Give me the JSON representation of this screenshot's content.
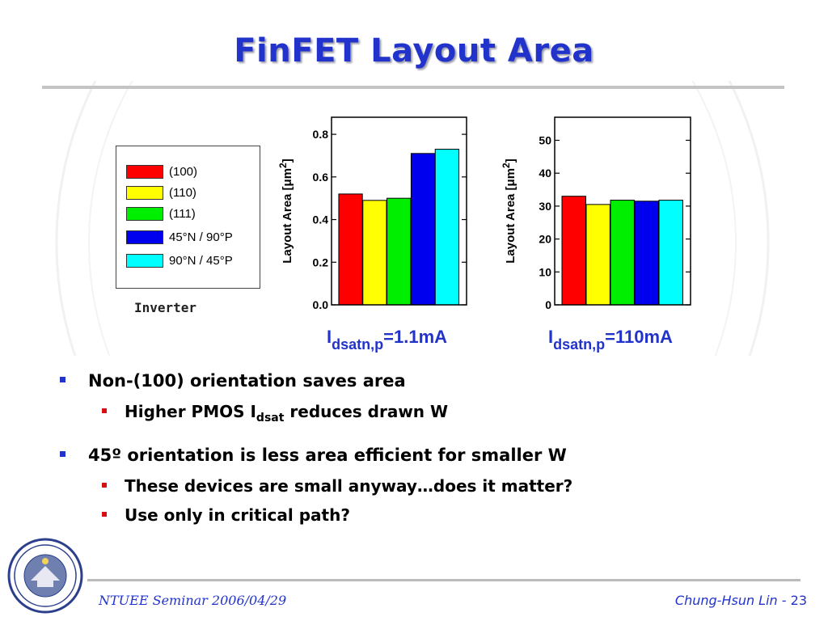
{
  "slide": {
    "title": "FinFET Layout Area",
    "footer_left": "NTUEE Seminar 2006/04/29",
    "footer_author": "Chung-Hsun Lin -",
    "footer_page": "23"
  },
  "legend": {
    "items": [
      {
        "label": "(100)",
        "color": "#ff0000"
      },
      {
        "label": "(110)",
        "color": "#ffff00"
      },
      {
        "label": "(111)",
        "color": "#00ee00"
      },
      {
        "label": "45°N / 90°P",
        "color": "#0000ee"
      },
      {
        "label": "90°N / 45°P",
        "color": "#00ffff"
      }
    ],
    "caption": "Inverter"
  },
  "chart_data": [
    {
      "type": "bar",
      "categories": [
        "(100)",
        "(110)",
        "(111)",
        "45°N / 90°P",
        "90°N / 45°P"
      ],
      "values": [
        0.52,
        0.49,
        0.5,
        0.71,
        0.73
      ],
      "colors": [
        "#ff0000",
        "#ffff00",
        "#00ee00",
        "#0000ee",
        "#00ffff"
      ],
      "ylabel_prefix": "Layout Area [",
      "ylabel_unit": "μm",
      "ylabel_sup": "2",
      "ylabel_suffix": "]",
      "ylim": [
        0,
        0.88
      ],
      "yticks": [
        "0.0",
        "0.2",
        "0.4",
        "0.6",
        "0.8"
      ],
      "ytick_values": [
        0,
        0.2,
        0.4,
        0.6,
        0.8
      ],
      "label_main": "I",
      "label_sub": "dsatn,p",
      "label_rest": "=1.1mA"
    },
    {
      "type": "bar",
      "categories": [
        "(100)",
        "(110)",
        "(111)",
        "45°N / 90°P",
        "90°N / 45°P"
      ],
      "values": [
        33,
        30.5,
        31.8,
        31.5,
        31.8
      ],
      "colors": [
        "#ff0000",
        "#ffff00",
        "#00ee00",
        "#0000ee",
        "#00ffff"
      ],
      "ylabel_prefix": "Layout Area [",
      "ylabel_unit": "μm",
      "ylabel_sup": "2",
      "ylabel_suffix": "]",
      "ylim": [
        0,
        57
      ],
      "yticks": [
        "0",
        "10",
        "20",
        "30",
        "40",
        "50"
      ],
      "ytick_values": [
        0,
        10,
        20,
        30,
        40,
        50
      ],
      "label_main": "I",
      "label_sub": "dsatn,p",
      "label_rest": "=110mA"
    }
  ],
  "bullets": [
    {
      "text": "Non-(100) orientation saves area",
      "sub": [
        {
          "pre": "Higher PMOS I",
          "sub": "dsat",
          "post": " reduces drawn W"
        }
      ]
    },
    {
      "text": "45º orientation is less area efficient for smaller W",
      "sub": [
        {
          "pre": "These devices are small anyway…does it matter?",
          "sub": "",
          "post": ""
        },
        {
          "pre": "Use only in critical path?",
          "sub": "",
          "post": ""
        }
      ]
    }
  ]
}
